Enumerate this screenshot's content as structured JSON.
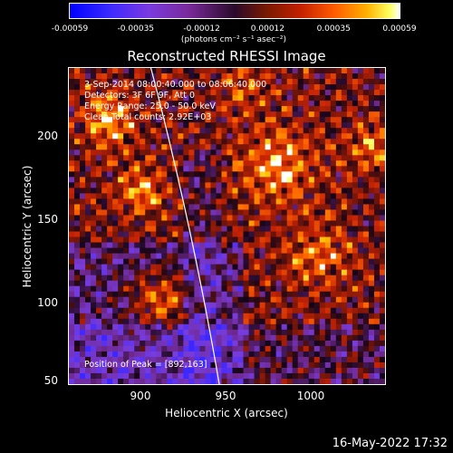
{
  "colorbar": {
    "ticks": [
      "-0.00059",
      "-0.00035",
      "-0.00012",
      "0.00012",
      "0.00035",
      "0.00059"
    ],
    "units": "(photons cm⁻² s⁻¹ asec⁻²)"
  },
  "title": "Reconstructed RHESSI Image",
  "info": {
    "time": "3-Sep-2014 08:00:40.000 to 08:06:40.000",
    "detectors": "Detectors: 3F 6F 9F, Att 0",
    "energy": "Energy Range: 25.0 - 50.0 keV",
    "clean": "Clean     Total counts: 2.92E+03",
    "peak": "Position of Peak = [892,163]"
  },
  "axes": {
    "xlabel": "Heliocentric X (arcsec)",
    "ylabel": "Heliocentric Y (arcsec)",
    "xticks": [
      "900",
      "950",
      "1000"
    ],
    "yticks": [
      "200",
      "150",
      "100",
      "50"
    ]
  },
  "timestamp": "16-May-2022 17:32",
  "chart_data": {
    "type": "heatmap",
    "title": "Reconstructed RHESSI Image",
    "xlabel": "Heliocentric X (arcsec)",
    "ylabel": "Heliocentric Y (arcsec)",
    "xlim": [
      862,
      1047
    ],
    "ylim": [
      50,
      235
    ],
    "color_range": [
      -0.00059,
      0.00059
    ],
    "colormap": "blue-purple-black-red-yellow-white",
    "limb_line": [
      [
        910,
        235
      ],
      [
        950,
        50
      ]
    ],
    "peak": [
      892,
      163
    ]
  }
}
